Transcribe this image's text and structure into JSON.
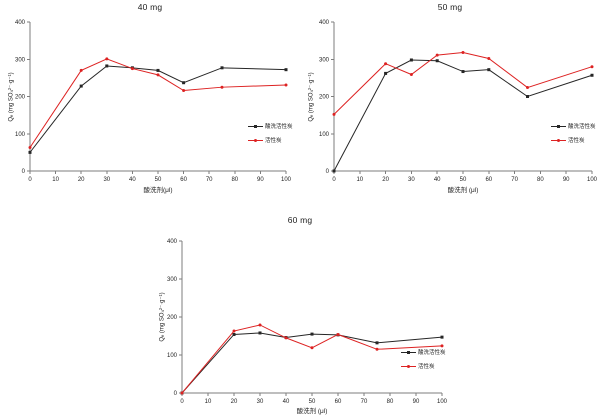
{
  "page": {
    "background": "#ffffff"
  },
  "chart_data": [
    {
      "type": "line",
      "title": "40 mg",
      "xlabel": "酸洗剂(μl)",
      "ylabel": "Qₑ (mg SO₄²⁻·g⁻¹)",
      "x": [
        0,
        20,
        30,
        40,
        50,
        60,
        75,
        100
      ],
      "series": [
        {
          "name": "酸洗活性炭",
          "color": "#262626",
          "marker": "square",
          "values": [
            50,
            228,
            282,
            277,
            270,
            237,
            277,
            272
          ]
        },
        {
          "name": "活性炭",
          "color": "#dd2222",
          "marker": "circle",
          "values": [
            63,
            270,
            301,
            275,
            258,
            216,
            225,
            231
          ]
        }
      ],
      "xlim": [
        0,
        100
      ],
      "ylim": [
        0,
        400
      ],
      "xticks": [
        0,
        10,
        20,
        30,
        40,
        50,
        60,
        70,
        80,
        90,
        100
      ],
      "yticks": [
        0,
        100,
        200,
        300,
        400
      ],
      "grid": false,
      "legend_position": "inside-right"
    },
    {
      "type": "line",
      "title": "50 mg",
      "xlabel": "酸洗剂 (μl)",
      "ylabel": "Qₑ (mg SO₄²⁻·g⁻¹)",
      "x": [
        0,
        20,
        30,
        40,
        50,
        60,
        75,
        100
      ],
      "series": [
        {
          "name": "酸洗活性炭",
          "color": "#262626",
          "marker": "square",
          "values": [
            0,
            262,
            298,
            296,
            267,
            272,
            200,
            257
          ]
        },
        {
          "name": "活性炭",
          "color": "#dd2222",
          "marker": "circle",
          "values": [
            152,
            288,
            259,
            311,
            318,
            302,
            224,
            280
          ]
        }
      ],
      "xlim": [
        0,
        100
      ],
      "ylim": [
        0,
        400
      ],
      "xticks": [
        0,
        10,
        20,
        30,
        40,
        50,
        60,
        70,
        80,
        90,
        100
      ],
      "yticks": [
        0,
        100,
        200,
        300,
        400
      ],
      "grid": false,
      "legend_position": "inside-right"
    },
    {
      "type": "line",
      "title": "60 mg",
      "xlabel": "酸洗剂 (μl)",
      "ylabel": "Qₑ (mg SO₄²⁻·g⁻¹)",
      "x": [
        0,
        20,
        30,
        40,
        50,
        60,
        75,
        100
      ],
      "series": [
        {
          "name": "酸洗活性炭",
          "color": "#262626",
          "marker": "square",
          "values": [
            0,
            154,
            158,
            146,
            155,
            153,
            132,
            147
          ]
        },
        {
          "name": "活性炭",
          "color": "#dd2222",
          "marker": "circle",
          "values": [
            0,
            163,
            179,
            145,
            119,
            154,
            115,
            124
          ]
        }
      ],
      "xlim": [
        0,
        100
      ],
      "ylim": [
        0,
        400
      ],
      "xticks": [
        0,
        10,
        20,
        30,
        40,
        50,
        60,
        70,
        80,
        90,
        100
      ],
      "yticks": [
        0,
        100,
        200,
        300,
        400
      ],
      "grid": false,
      "legend_position": "inside-right"
    }
  ]
}
